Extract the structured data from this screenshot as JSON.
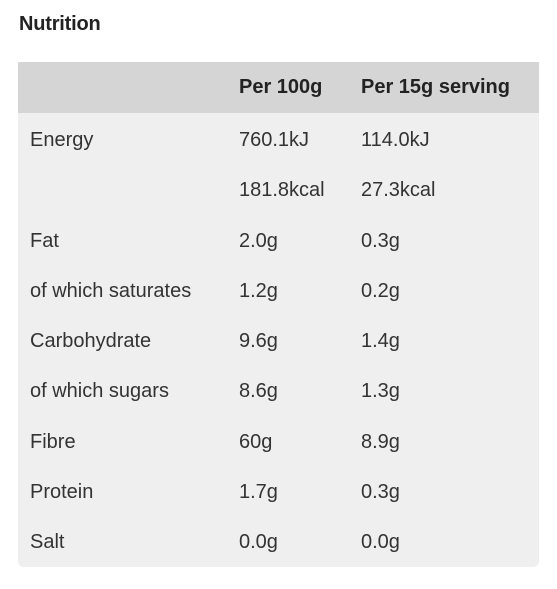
{
  "title": "Nutrition",
  "table": {
    "headers": [
      "",
      "Per 100g",
      "Per 15g serving"
    ],
    "rows": [
      [
        "Energy",
        "760.1kJ",
        "114.0kJ"
      ],
      [
        "",
        "181.8kcal",
        "27.3kcal"
      ],
      [
        "Fat",
        "2.0g",
        "0.3g"
      ],
      [
        "of which saturates",
        "1.2g",
        "0.2g"
      ],
      [
        "Carbohydrate",
        "9.6g",
        "1.4g"
      ],
      [
        "of which sugars",
        "8.6g",
        "1.3g"
      ],
      [
        "Fibre",
        "60g",
        "8.9g"
      ],
      [
        "Protein",
        "1.7g",
        "0.3g"
      ],
      [
        "Salt",
        "0.0g",
        "0.0g"
      ]
    ]
  },
  "colors": {
    "header_bg": "#d5d5d5",
    "body_bg": "#efefef",
    "text": "#222222"
  }
}
